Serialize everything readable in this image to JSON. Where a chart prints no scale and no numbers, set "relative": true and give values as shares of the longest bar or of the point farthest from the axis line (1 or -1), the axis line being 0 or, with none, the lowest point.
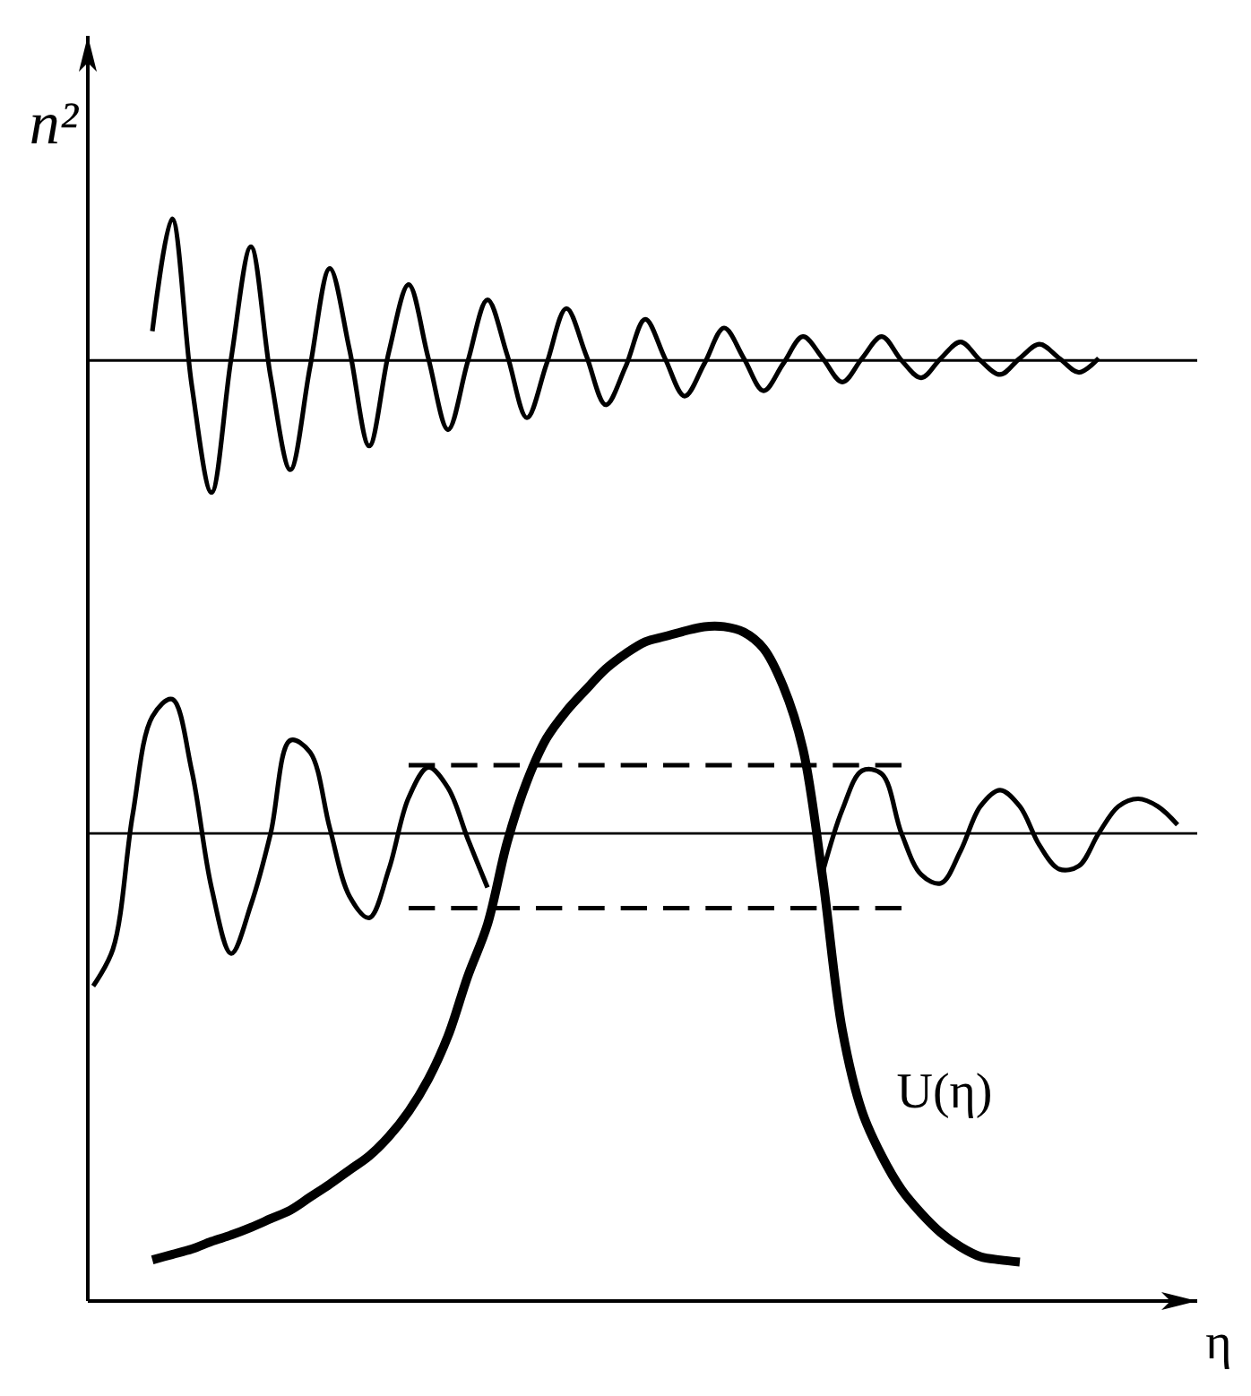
{
  "chart_data": {
    "type": "line",
    "relative": true,
    "ylabel": "n²",
    "xlabel": "η",
    "annotations": [
      "U(η)"
    ],
    "categories": [
      null,
      null,
      null,
      null,
      null,
      null,
      null,
      null,
      null,
      null,
      null,
      null,
      null,
      null,
      null,
      null,
      null,
      null,
      null,
      null,
      null,
      null,
      null,
      null,
      null,
      null,
      null,
      null,
      null,
      null,
      null,
      null,
      null,
      null,
      null,
      null,
      null,
      null,
      null,
      null,
      null,
      null,
      null,
      null,
      null,
      null,
      null,
      null,
      null,
      null,
      null,
      null,
      null,
      null,
      null,
      null,
      null
    ],
    "ref_lines": [
      {
        "axis": "y",
        "value": 0.869,
        "color": "#000000"
      },
      {
        "axis": "y",
        "value": 0.432,
        "color": "#000000"
      }
    ],
    "series": [
      {
        "color": "#000000",
        "values": [
          null,
          null,
          null,
          0.896,
          1,
          0.846,
          0.747,
          0.871,
          0.974,
          0.854,
          0.768,
          0.863,
          0.954,
          0.879,
          0.79,
          0.877,
          0.939,
          0.871,
          0.805,
          0.868,
          0.925,
          0.874,
          0.816,
          0.866,
          0.917,
          0.874,
          0.828,
          0.863,
          0.907,
          0.871,
          0.836,
          0.866,
          0.899,
          0.871,
          0.841,
          0.866,
          0.891,
          0.871,
          0.849,
          0.871,
          0.891,
          0.869,
          0.853,
          0.871,
          0.886,
          0.869,
          0.856,
          0.871,
          0.884,
          0.871,
          0.858,
          0.871,
          null,
          null,
          null,
          null,
          null
        ]
      },
      {
        "color": "#000000",
        "values": [
          0.291,
          0.325,
          0.449,
          0.54,
          0.556,
          0.49,
          0.382,
          0.321,
          0.366,
          0.432,
          0.518,
          0.507,
          0.437,
          0.374,
          0.354,
          0.399,
          0.465,
          0.493,
          0.474,
          0.427,
          0.382,
          null,
          null,
          null,
          null,
          null,
          null,
          null,
          null,
          null,
          null,
          null,
          null,
          null,
          null,
          null,
          null,
          0.396,
          0.454,
          0.49,
          0.487,
          0.432,
          0.394,
          0.386,
          0.416,
          0.457,
          0.472,
          0.457,
          0.421,
          0.399,
          0.402,
          0.432,
          0.457,
          0.464,
          0.457,
          0.44,
          null
        ]
      },
      {
        "color": "#000000",
        "values": [
          null,
          null,
          null,
          0.038,
          0.043,
          0.048,
          0.055,
          0.061,
          0.068,
          0.076,
          0.084,
          0.096,
          0.108,
          0.121,
          0.134,
          0.152,
          0.175,
          0.205,
          0.245,
          0.3,
          0.348,
          0.424,
          0.48,
          0.52,
          0.545,
          0.565,
          0.584,
          0.598,
          0.609,
          0.614,
          0.619,
          0.623,
          0.623,
          0.618,
          0.603,
          0.568,
          0.51,
          0.391,
          0.25,
          0.175,
          0.134,
          0.103,
          0.081,
          0.063,
          0.05,
          0.041,
          0.038,
          0.036,
          null,
          null,
          null,
          null,
          null,
          null,
          null,
          null,
          null
        ]
      },
      {
        "color": "#000000",
        "line_style": "dashed",
        "values": [
          null,
          null,
          null,
          null,
          null,
          null,
          null,
          null,
          null,
          null,
          null,
          null,
          null,
          null,
          null,
          null,
          0.495,
          0.495,
          0.495,
          0.495,
          0.495,
          0.495,
          0.495,
          0.495,
          0.495,
          0.495,
          0.495,
          0.495,
          0.495,
          0.495,
          0.495,
          0.495,
          0.495,
          0.495,
          0.495,
          0.495,
          0.495,
          0.495,
          0.495,
          0.495,
          0.495,
          0.495,
          null,
          null,
          null,
          null,
          null,
          null,
          null,
          null,
          null,
          null,
          null,
          null,
          null,
          null,
          null
        ]
      },
      {
        "color": "#000000",
        "line_style": "dashed",
        "values": [
          null,
          null,
          null,
          null,
          null,
          null,
          null,
          null,
          null,
          null,
          null,
          null,
          null,
          null,
          null,
          null,
          0.363,
          0.363,
          0.363,
          0.363,
          0.363,
          0.363,
          0.363,
          0.363,
          0.363,
          0.363,
          0.363,
          0.363,
          0.363,
          0.363,
          0.363,
          0.363,
          0.363,
          0.363,
          0.363,
          0.363,
          0.363,
          0.363,
          0.363,
          0.363,
          0.363,
          0.363,
          null,
          null,
          null,
          null,
          null,
          null,
          null,
          null,
          null,
          null,
          null,
          null,
          null,
          null,
          null
        ]
      }
    ]
  }
}
